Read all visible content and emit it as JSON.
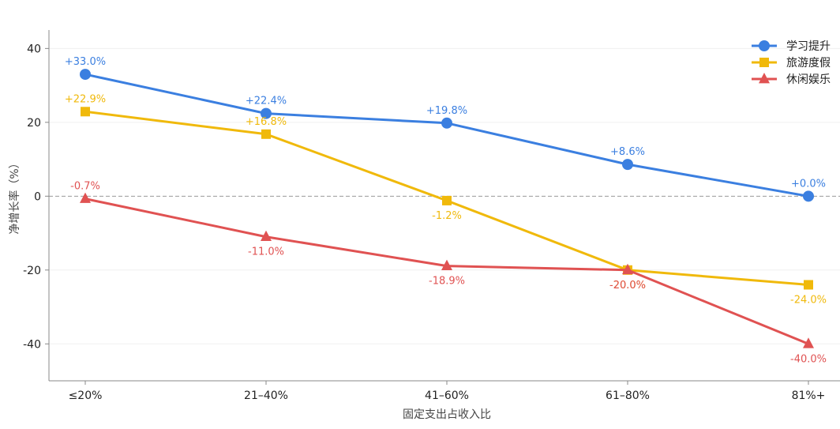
{
  "chart_data": {
    "type": "line",
    "title": "",
    "xlabel": "固定支出占收入比",
    "ylabel": "净增长率（%）",
    "categories": [
      "≤20%",
      "21–40%",
      "41–60%",
      "61–80%",
      "81%+"
    ],
    "ylim": [
      -50,
      45
    ],
    "yticks": [
      40,
      20,
      0,
      -20,
      -40
    ],
    "ytick_labels": [
      "40",
      "20",
      "0",
      "-20",
      "-40"
    ],
    "reference_line": 0,
    "legend_position": "top-right",
    "series": [
      {
        "name": "学习提升",
        "color": "#3b7fe0",
        "marker": "circle",
        "values": [
          33.0,
          22.4,
          19.8,
          8.6,
          0.0
        ],
        "labels": [
          "+33.0%",
          "+22.4%",
          "+19.8%",
          "+8.6%",
          "+0.0%"
        ],
        "label_position": "above"
      },
      {
        "name": "旅游度假",
        "color": "#f0b90b",
        "marker": "square",
        "values": [
          22.9,
          16.8,
          -1.2,
          -20.0,
          -24.0
        ],
        "labels": [
          "+22.9%",
          "+16.8%",
          "-1.2%",
          "-20.0%",
          "-24.0%"
        ],
        "label_position": "mixed"
      },
      {
        "name": "休闲娱乐",
        "color": "#e05252",
        "marker": "triangle",
        "values": [
          -0.7,
          -11.0,
          -18.9,
          -20.0,
          -40.0
        ],
        "labels": [
          "-0.7%",
          "-11.0%",
          "-18.9%",
          "-20.0%",
          "-40.0%"
        ],
        "label_position": "mixed"
      }
    ]
  }
}
